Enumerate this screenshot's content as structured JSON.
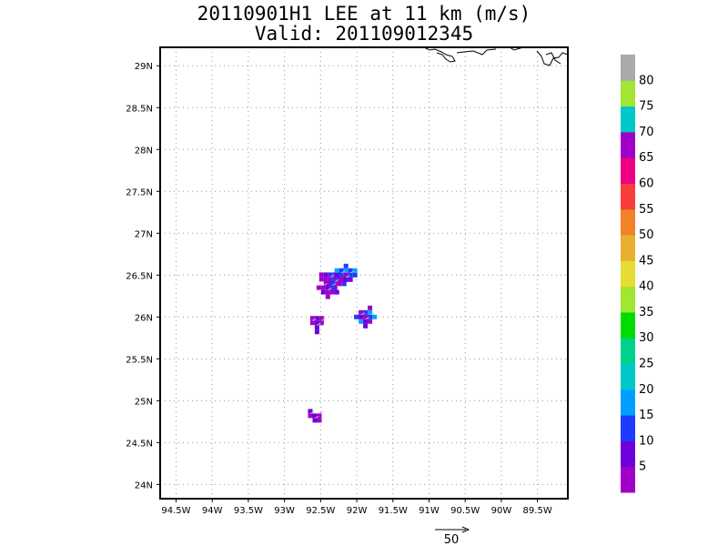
{
  "title": {
    "line1": "20110901H1 LEE at 11 km (m/s)",
    "line2": "Valid: 201109012345"
  },
  "map": {
    "lat_labels": [
      "29N",
      "28.5N",
      "28N",
      "27.5N",
      "27N",
      "26.5N",
      "26N",
      "25.5N",
      "25N",
      "24.5N",
      "24N"
    ],
    "lat_values": [
      29,
      28.5,
      28,
      27.5,
      27,
      26.5,
      26,
      25.5,
      25,
      24.5,
      24
    ],
    "lon_labels": [
      "94.5W",
      "94W",
      "93.5W",
      "93W",
      "92.5W",
      "92W",
      "91.5W",
      "91W",
      "90.5W",
      "90W",
      "89.5W"
    ],
    "lon_values": [
      -94.5,
      -94,
      -93.5,
      -93,
      -92.5,
      -92,
      -91.5,
      -91,
      -90.5,
      -90,
      -89.5
    ],
    "lat_range": [
      23.83,
      29.22
    ],
    "lon_range": [
      -94.72,
      -89.08
    ],
    "grid": "dotted",
    "echo_cells": [
      {
        "lon": -92.3,
        "lat": 26.45,
        "level": "5-15"
      },
      {
        "lon": -92.15,
        "lat": 26.5,
        "level": "10-20"
      },
      {
        "lon": -92.4,
        "lat": 26.35,
        "level": "5-15"
      },
      {
        "lon": -92.55,
        "lat": 25.93,
        "level": "5-10"
      },
      {
        "lon": -91.88,
        "lat": 26.0,
        "level": "5-20"
      },
      {
        "lon": -92.58,
        "lat": 24.82,
        "level": "5-10"
      }
    ]
  },
  "colorbar": {
    "labels": [
      "5",
      "10",
      "15",
      "20",
      "25",
      "30",
      "35",
      "40",
      "45",
      "50",
      "55",
      "60",
      "65",
      "70",
      "75",
      "80"
    ],
    "colors": [
      "#a000c8",
      "#6e00dc",
      "#1e3cff",
      "#00a0ff",
      "#00c8c8",
      "#00d28c",
      "#00dc00",
      "#a0e632",
      "#e6dc32",
      "#e6af2d",
      "#f08228",
      "#fa3c3c",
      "#f00082",
      "#a000c8",
      "#00c8c8",
      "#a0e632",
      "#aaaaaa"
    ]
  },
  "vector_key": {
    "label": "50"
  }
}
